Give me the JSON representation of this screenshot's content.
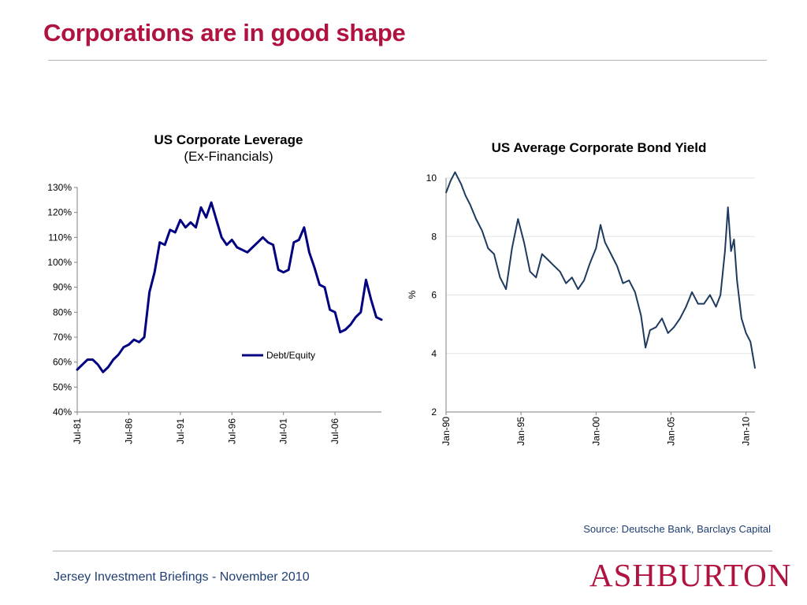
{
  "slide": {
    "title": "Corporations are in good shape",
    "source": "Source: Deutsche Bank, Barclays Capital",
    "footer": "Jersey Investment Briefings - November 2010",
    "logo": "ASHBURTON"
  },
  "colors": {
    "title": "#b0133f",
    "series_left": "#000080",
    "series_right": "#1f3a5f",
    "text_blue": "#1f3f73"
  },
  "chart_data": [
    {
      "type": "line",
      "title": "US Corporate Leverage",
      "subtitle": "(Ex-Financials)",
      "xlabel": "",
      "ylabel": "",
      "ylim": [
        0.4,
        1.3
      ],
      "ytick_labels": [
        "40%",
        "50%",
        "60%",
        "70%",
        "80%",
        "90%",
        "100%",
        "110%",
        "120%",
        "130%"
      ],
      "xtick_labels": [
        "Jul-81",
        "Jul-86",
        "Jul-91",
        "Jul-96",
        "Jul-01",
        "Jul-06"
      ],
      "legend": "inside-right",
      "grid": false,
      "series": [
        {
          "name": "Debt/Equity",
          "x": [
            1981.5,
            1982.0,
            1982.5,
            1983.0,
            1983.5,
            1984.0,
            1984.5,
            1985.0,
            1985.5,
            1986.0,
            1986.5,
            1987.0,
            1987.5,
            1988.0,
            1988.5,
            1989.0,
            1989.5,
            1990.0,
            1990.5,
            1991.0,
            1991.5,
            1992.0,
            1992.5,
            1993.0,
            1993.5,
            1994.0,
            1994.5,
            1995.0,
            1995.5,
            1996.0,
            1996.5,
            1997.0,
            1997.5,
            1998.0,
            1998.5,
            1999.0,
            1999.5,
            2000.0,
            2000.5,
            2001.0,
            2001.5,
            2002.0,
            2002.5,
            2003.0,
            2003.5,
            2004.0,
            2004.5,
            2005.0,
            2005.5,
            2006.0,
            2006.5,
            2007.0,
            2007.5,
            2008.0,
            2008.5,
            2009.0,
            2009.5,
            2010.0,
            2010.5,
            2011.0
          ],
          "values": [
            0.57,
            0.59,
            0.61,
            0.61,
            0.59,
            0.56,
            0.58,
            0.61,
            0.63,
            0.66,
            0.67,
            0.69,
            0.68,
            0.7,
            0.88,
            0.96,
            1.08,
            1.07,
            1.13,
            1.12,
            1.17,
            1.14,
            1.16,
            1.14,
            1.22,
            1.18,
            1.24,
            1.17,
            1.1,
            1.07,
            1.09,
            1.06,
            1.05,
            1.04,
            1.06,
            1.08,
            1.1,
            1.08,
            1.07,
            0.97,
            0.96,
            0.97,
            1.08,
            1.09,
            1.14,
            1.04,
            0.98,
            0.91,
            0.9,
            0.81,
            0.8,
            0.72,
            0.73,
            0.75,
            0.78,
            0.8,
            0.93,
            0.85,
            0.78,
            0.77
          ]
        }
      ]
    },
    {
      "type": "line",
      "title": "US Average Corporate Bond Yield",
      "xlabel": "",
      "ylabel": "%",
      "ylim": [
        2,
        10
      ],
      "ytick_labels": [
        "2",
        "4",
        "6",
        "8",
        "10"
      ],
      "xtick_labels": [
        "Jan-90",
        "Jan-95",
        "Jan-00",
        "Jan-05",
        "Jan-10"
      ],
      "grid": true,
      "series": [
        {
          "x": [
            1990.0,
            1990.3,
            1990.6,
            1991.0,
            1991.3,
            1991.6,
            1992.0,
            1992.4,
            1992.8,
            1993.2,
            1993.6,
            1994.0,
            1994.4,
            1994.8,
            1995.2,
            1995.6,
            1996.0,
            1996.4,
            1996.8,
            1997.2,
            1997.6,
            1998.0,
            1998.4,
            1998.8,
            1999.2,
            1999.6,
            2000.0,
            2000.3,
            2000.6,
            2001.0,
            2001.4,
            2001.8,
            2002.2,
            2002.6,
            2003.0,
            2003.3,
            2003.6,
            2004.0,
            2004.4,
            2004.8,
            2005.2,
            2005.6,
            2006.0,
            2006.4,
            2006.8,
            2007.2,
            2007.6,
            2008.0,
            2008.3,
            2008.6,
            2008.8,
            2009.0,
            2009.2,
            2009.4,
            2009.7,
            2010.0,
            2010.3,
            2010.6
          ],
          "values": [
            9.5,
            9.9,
            10.2,
            9.8,
            9.4,
            9.1,
            8.6,
            8.2,
            7.6,
            7.4,
            6.6,
            6.2,
            7.6,
            8.6,
            7.8,
            6.8,
            6.6,
            7.4,
            7.2,
            7.0,
            6.8,
            6.4,
            6.6,
            6.2,
            6.5,
            7.1,
            7.6,
            8.4,
            7.8,
            7.4,
            7.0,
            6.4,
            6.5,
            6.1,
            5.3,
            4.2,
            4.8,
            4.9,
            5.2,
            4.7,
            4.9,
            5.2,
            5.6,
            6.1,
            5.7,
            5.7,
            6.0,
            5.6,
            6.0,
            7.5,
            9.0,
            7.5,
            7.9,
            6.5,
            5.2,
            4.7,
            4.4,
            3.5
          ]
        }
      ]
    }
  ]
}
